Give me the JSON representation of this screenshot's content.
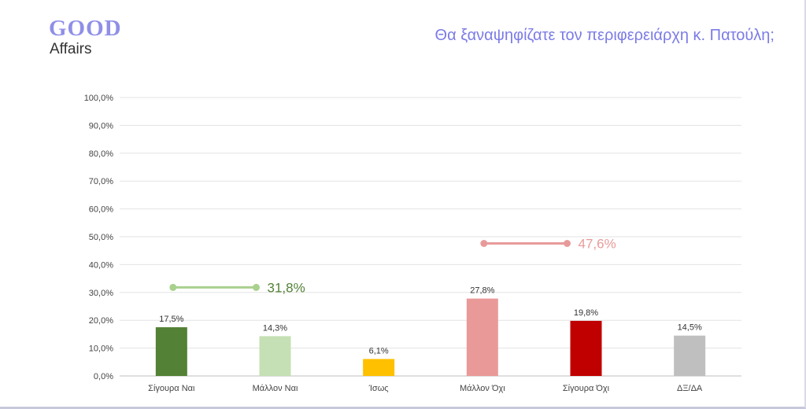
{
  "logo": {
    "line1": "GOOD",
    "line2": "Affairs"
  },
  "chart_data": {
    "type": "bar",
    "title": "Θα ξαναψηφίζατε τον περιφερειάρχη κ. Πατούλη;",
    "categories": [
      "Σίγουρα Ναι",
      "Μάλλον Ναι",
      "Ίσως",
      "Μάλλον Όχι",
      "Σίγουρα Όχι",
      "ΔΞ/ΔΑ"
    ],
    "values": [
      17.5,
      14.3,
      6.1,
      27.8,
      19.8,
      14.5
    ],
    "value_labels": [
      "17,5%",
      "14,3%",
      "6,1%",
      "27,8%",
      "19,8%",
      "14,5%"
    ],
    "colors": [
      "#538135",
      "#c5e0b4",
      "#ffc000",
      "#ea9999",
      "#c00000",
      "#bfbfbf"
    ],
    "ylim": [
      0,
      100
    ],
    "yticks": [
      "0,0%",
      "10,0%",
      "20,0%",
      "30,0%",
      "40,0%",
      "50,0%",
      "60,0%",
      "70,0%",
      "80,0%",
      "90,0%",
      "100,0%"
    ],
    "grid": true,
    "annotations": [
      {
        "label": "31,8%",
        "value": 31.8,
        "color": "#a9d18e",
        "text_color": "#538135",
        "span": [
          0,
          1
        ]
      },
      {
        "label": "47,6%",
        "value": 47.6,
        "color": "#e89a9a",
        "text_color": "#e89a9a",
        "span": [
          3,
          4
        ]
      }
    ]
  }
}
